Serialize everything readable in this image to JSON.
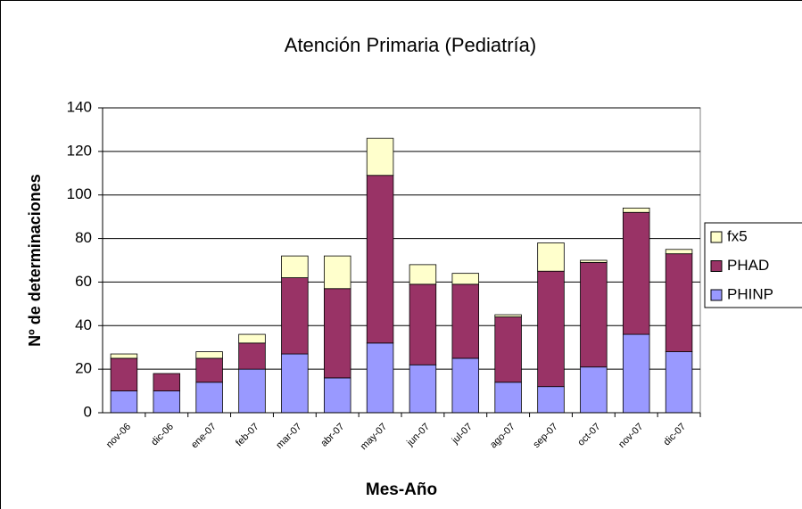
{
  "chart_data": {
    "type": "stacked_bar",
    "title": "Atención Primaria (Pediatría)",
    "x_label": "Mes-Año",
    "y_label": "Nº de determinaciones",
    "categories": [
      "nov-06",
      "dic-06",
      "ene-07",
      "feb-07",
      "mar-07",
      "abr-07",
      "may-07",
      "jun-07",
      "jul-07",
      "ago-07",
      "sep-07",
      "oct-07",
      "nov-07",
      "dic-07"
    ],
    "series": [
      {
        "name": "PHINP",
        "color": "#9999ff",
        "values": [
          10,
          10,
          14,
          20,
          27,
          16,
          32,
          22,
          25,
          14,
          12,
          21,
          36,
          28
        ]
      },
      {
        "name": "PHAD",
        "color": "#993366",
        "values": [
          15,
          8,
          11,
          12,
          35,
          41,
          77,
          37,
          34,
          30,
          53,
          48,
          56,
          45
        ]
      },
      {
        "name": "fx5",
        "color": "#ffffcc",
        "values": [
          2,
          0,
          3,
          4,
          10,
          15,
          17,
          9,
          5,
          1,
          13,
          1,
          2,
          2
        ]
      }
    ],
    "ylim": [
      0,
      140
    ],
    "yticks": [
      0,
      20,
      40,
      60,
      80,
      100,
      120,
      140
    ],
    "grid": true,
    "legend": "right"
  }
}
